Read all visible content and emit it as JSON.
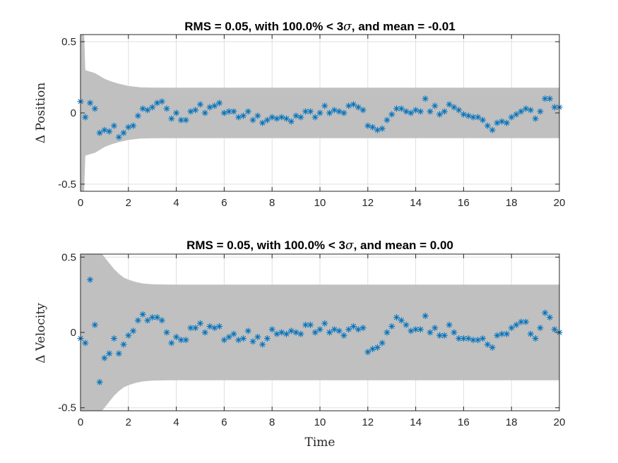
{
  "colors": {
    "band": "#c0c0c0",
    "marker": "#0072bd",
    "grid": "#dfdfdf",
    "axis": "#262626"
  },
  "chart_data": [
    {
      "type": "scatter",
      "title_pre": "RMS = 0.05, with 100.0% < 3",
      "title_sym": "σ",
      "title_post": ", and mean = -0.01",
      "xlabel": "",
      "ylabel": "Δ Position",
      "xlim": [
        0,
        20
      ],
      "ylim": [
        -0.55,
        0.55
      ],
      "xticks": [
        0,
        2,
        4,
        6,
        8,
        10,
        12,
        14,
        16,
        18,
        20
      ],
      "xtick_labels": [
        "0",
        "2",
        "4",
        "6",
        "8",
        "10",
        "12",
        "14",
        "16",
        "18",
        "20"
      ],
      "yticks": [
        -0.5,
        0,
        0.5
      ],
      "ytick_labels": [
        "-0.5",
        "0",
        "0.5"
      ],
      "grid": true,
      "band": {
        "x": [
          0,
          0.15,
          0.2,
          0.4,
          0.6,
          0.8,
          1.0,
          1.3,
          1.6,
          2.0,
          2.5,
          3.0,
          4.0,
          6.0,
          20.0
        ],
        "upper": [
          0.55,
          0.55,
          0.3,
          0.29,
          0.28,
          0.26,
          0.24,
          0.22,
          0.205,
          0.19,
          0.18,
          0.178,
          0.177,
          0.177,
          0.177
        ],
        "lower": [
          -0.55,
          -0.55,
          -0.3,
          -0.29,
          -0.28,
          -0.26,
          -0.24,
          -0.22,
          -0.205,
          -0.19,
          -0.18,
          -0.178,
          -0.177,
          -0.177,
          -0.177
        ]
      },
      "x": [
        0,
        0.2,
        0.4,
        0.6,
        0.8,
        1.0,
        1.2,
        1.4,
        1.6,
        1.8,
        2.0,
        2.2,
        2.4,
        2.6,
        2.8,
        3.0,
        3.2,
        3.4,
        3.6,
        3.8,
        4.0,
        4.2,
        4.4,
        4.6,
        4.8,
        5.0,
        5.2,
        5.4,
        5.6,
        5.8,
        6.0,
        6.2,
        6.4,
        6.6,
        6.8,
        7.0,
        7.2,
        7.4,
        7.6,
        7.8,
        8.0,
        8.2,
        8.4,
        8.6,
        8.8,
        9.0,
        9.2,
        9.4,
        9.6,
        9.8,
        10.0,
        10.2,
        10.4,
        10.6,
        10.8,
        11.0,
        11.2,
        11.4,
        11.6,
        11.8,
        12.0,
        12.2,
        12.4,
        12.6,
        12.8,
        13.0,
        13.2,
        13.4,
        13.6,
        13.8,
        14.0,
        14.2,
        14.4,
        14.6,
        14.8,
        15.0,
        15.2,
        15.4,
        15.6,
        15.8,
        16.0,
        16.2,
        16.4,
        16.6,
        16.8,
        17.0,
        17.2,
        17.4,
        17.6,
        17.8,
        18.0,
        18.2,
        18.4,
        18.6,
        18.8,
        19.0,
        19.2,
        19.4,
        19.6,
        19.8,
        20.0
      ],
      "y": [
        0.08,
        -0.03,
        0.07,
        0.03,
        -0.14,
        -0.12,
        -0.13,
        -0.09,
        -0.17,
        -0.14,
        -0.1,
        -0.09,
        -0.02,
        0.03,
        0.02,
        0.04,
        0.07,
        0.08,
        0.03,
        -0.04,
        0.0,
        -0.05,
        -0.05,
        0.01,
        0.02,
        0.06,
        0.0,
        0.04,
        0.05,
        0.07,
        0.0,
        0.01,
        0.01,
        -0.03,
        -0.02,
        0.01,
        -0.05,
        -0.02,
        -0.07,
        -0.05,
        -0.03,
        -0.04,
        -0.03,
        -0.04,
        -0.06,
        -0.02,
        -0.03,
        0.01,
        0.01,
        -0.03,
        0.0,
        0.05,
        0.0,
        0.02,
        0.01,
        0.0,
        0.05,
        0.06,
        0.04,
        0.02,
        -0.09,
        -0.1,
        -0.12,
        -0.11,
        -0.05,
        -0.01,
        0.03,
        0.03,
        0.01,
        0.0,
        0.02,
        0.01,
        0.1,
        0.01,
        0.05,
        -0.01,
        0.01,
        0.06,
        0.04,
        0.02,
        -0.01,
        -0.02,
        -0.03,
        -0.03,
        -0.05,
        -0.09,
        -0.12,
        -0.07,
        -0.06,
        -0.07,
        -0.03,
        -0.01,
        0.01,
        0.03,
        0.02,
        -0.04,
        0.01,
        0.1,
        0.1,
        0.04,
        0.04
      ]
    },
    {
      "type": "scatter",
      "title_pre": "RMS = 0.05, with 100.0% < 3",
      "title_sym": "σ",
      "title_post": ", and mean = 0.00",
      "xlabel": "Time",
      "ylabel": "Δ Velocity",
      "xlim": [
        0,
        20
      ],
      "ylim": [
        -0.52,
        0.52
      ],
      "xticks": [
        0,
        2,
        4,
        6,
        8,
        10,
        12,
        14,
        16,
        18,
        20
      ],
      "xtick_labels": [
        "0",
        "2",
        "4",
        "6",
        "8",
        "10",
        "12",
        "14",
        "16",
        "18",
        "20"
      ],
      "yticks": [
        -0.5,
        0,
        0.5
      ],
      "ytick_labels": [
        "-0.5",
        "0",
        "0.5"
      ],
      "grid": true,
      "band": {
        "x": [
          0,
          0.9,
          1.0,
          1.2,
          1.4,
          1.6,
          1.8,
          2.0,
          2.3,
          2.6,
          3.0,
          3.5,
          4.0,
          6.0,
          20.0
        ],
        "upper": [
          0.52,
          0.52,
          0.5,
          0.46,
          0.42,
          0.39,
          0.365,
          0.35,
          0.335,
          0.325,
          0.32,
          0.318,
          0.317,
          0.317,
          0.317
        ],
        "lower": [
          -0.52,
          -0.52,
          -0.5,
          -0.46,
          -0.42,
          -0.39,
          -0.365,
          -0.35,
          -0.335,
          -0.325,
          -0.32,
          -0.318,
          -0.317,
          -0.317,
          -0.317
        ]
      },
      "x": [
        0,
        0.2,
        0.4,
        0.6,
        0.8,
        1.0,
        1.2,
        1.4,
        1.6,
        1.8,
        2.0,
        2.2,
        2.4,
        2.6,
        2.8,
        3.0,
        3.2,
        3.4,
        3.6,
        3.8,
        4.0,
        4.2,
        4.4,
        4.6,
        4.8,
        5.0,
        5.2,
        5.4,
        5.6,
        5.8,
        6.0,
        6.2,
        6.4,
        6.6,
        6.8,
        7.0,
        7.2,
        7.4,
        7.6,
        7.8,
        8.0,
        8.2,
        8.4,
        8.6,
        8.8,
        9.0,
        9.2,
        9.4,
        9.6,
        9.8,
        10.0,
        10.2,
        10.4,
        10.6,
        10.8,
        11.0,
        11.2,
        11.4,
        11.6,
        11.8,
        12.0,
        12.2,
        12.4,
        12.6,
        12.8,
        13.0,
        13.2,
        13.4,
        13.6,
        13.8,
        14.0,
        14.2,
        14.4,
        14.6,
        14.8,
        15.0,
        15.2,
        15.4,
        15.6,
        15.8,
        16.0,
        16.2,
        16.4,
        16.6,
        16.8,
        17.0,
        17.2,
        17.4,
        17.6,
        17.8,
        18.0,
        18.2,
        18.4,
        18.6,
        18.8,
        19.0,
        19.2,
        19.4,
        19.6,
        19.8,
        20.0
      ],
      "y": [
        -0.04,
        -0.07,
        0.35,
        0.05,
        -0.33,
        -0.17,
        -0.14,
        -0.04,
        -0.14,
        -0.08,
        -0.02,
        0.01,
        0.08,
        0.12,
        0.08,
        0.1,
        0.1,
        0.08,
        0.0,
        -0.07,
        -0.03,
        -0.05,
        -0.05,
        0.03,
        0.03,
        0.06,
        0.0,
        0.04,
        0.03,
        0.04,
        -0.05,
        -0.03,
        -0.01,
        -0.05,
        -0.04,
        0.01,
        -0.06,
        -0.03,
        -0.08,
        -0.04,
        0.02,
        -0.01,
        0.0,
        -0.01,
        0.01,
        0.0,
        -0.01,
        0.05,
        0.05,
        0.0,
        0.02,
        0.06,
        0.0,
        0.02,
        0.01,
        -0.02,
        0.02,
        0.04,
        0.02,
        0.03,
        -0.13,
        -0.11,
        -0.1,
        -0.07,
        0.0,
        0.04,
        0.1,
        0.08,
        0.05,
        0.01,
        0.02,
        0.02,
        0.11,
        0.0,
        0.03,
        -0.02,
        -0.02,
        0.05,
        0.0,
        -0.04,
        -0.04,
        -0.04,
        -0.05,
        -0.05,
        -0.04,
        -0.08,
        -0.1,
        -0.02,
        -0.01,
        -0.01,
        0.03,
        0.05,
        0.07,
        0.07,
        -0.01,
        -0.04,
        0.03,
        0.13,
        0.1,
        0.02,
        0.0
      ]
    }
  ]
}
